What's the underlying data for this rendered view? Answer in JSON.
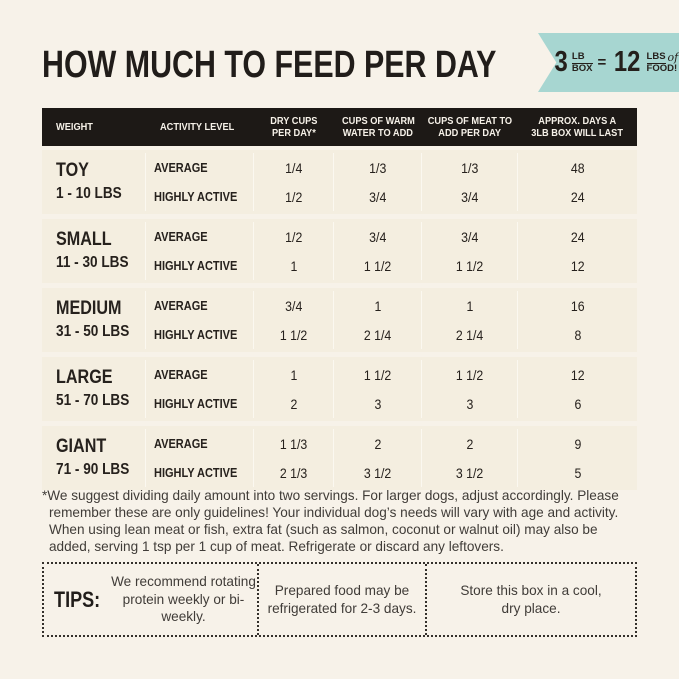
{
  "page": {
    "title": "HOW MUCH TO FEED PER DAY",
    "colors": {
      "background": "#f7f2e9",
      "header_bar": "#1d1916",
      "row_bg": "#f4eee0",
      "accent_teal": "#a7d6d1",
      "text_dark": "#211d1a",
      "text_gray": "#403c38"
    }
  },
  "badge": {
    "qty1": "3",
    "unit1_top": "LB",
    "unit1_bottom": "BOX",
    "equals": "=",
    "qty2": "12",
    "unit2_top": "LBS",
    "unit2_script": "of",
    "unit2_bottom": "FOOD!"
  },
  "table": {
    "headers": [
      [
        "WEIGHT"
      ],
      [
        "ACTIVITY LEVEL"
      ],
      [
        "DRY CUPS",
        "PER DAY*"
      ],
      [
        "CUPS OF WARM",
        "WATER TO ADD"
      ],
      [
        "CUPS OF MEAT TO",
        "ADD PER DAY"
      ],
      [
        "APPROX. DAYS A",
        "3LB BOX WILL LAST"
      ]
    ],
    "activity_labels": {
      "average": "AVERAGE",
      "highly_active": "HIGHLY ACTIVE"
    },
    "rows": [
      {
        "size": "TOY",
        "range": "1 - 10 LBS",
        "average": [
          "1/4",
          "1/3",
          "1/3",
          "48"
        ],
        "highly_active": [
          "1/2",
          "3/4",
          "3/4",
          "24"
        ]
      },
      {
        "size": "SMALL",
        "range": "11 - 30 LBS",
        "average": [
          "1/2",
          "3/4",
          "3/4",
          "24"
        ],
        "highly_active": [
          "1",
          "1 1/2",
          "1 1/2",
          "12"
        ]
      },
      {
        "size": "MEDIUM",
        "range": "31 - 50 LBS",
        "average": [
          "3/4",
          "1",
          "1",
          "16"
        ],
        "highly_active": [
          "1 1/2",
          "2 1/4",
          "2 1/4",
          "8"
        ]
      },
      {
        "size": "LARGE",
        "range": "51 - 70 LBS",
        "average": [
          "1",
          "1 1/2",
          "1 1/2",
          "12"
        ],
        "highly_active": [
          "2",
          "3",
          "3",
          "6"
        ]
      },
      {
        "size": "GIANT",
        "range": "71 - 90 LBS",
        "average": [
          "1 1/3",
          "2",
          "2",
          "9"
        ],
        "highly_active": [
          "2 1/3",
          "3 1/2",
          "3 1/2",
          "5"
        ]
      }
    ]
  },
  "footnote": "*We suggest dividing daily amount into two servings. For larger dogs, adjust accordingly. Please remember these are only guidelines! Your individual dog’s needs will vary with age and activity. When using lean meat or fish, extra fat (such as salmon, coconut or walnut oil) may also be added, serving 1 tsp per 1 cup of meat. Refrigerate or discard any leftovers.",
  "tips": {
    "label": "TIPS:",
    "items": [
      "We recommend rotating protein weekly or bi-weekly.",
      "Prepared food may be refrigerated for 2-3 days.",
      "Store this box in a cool, dry place."
    ]
  }
}
